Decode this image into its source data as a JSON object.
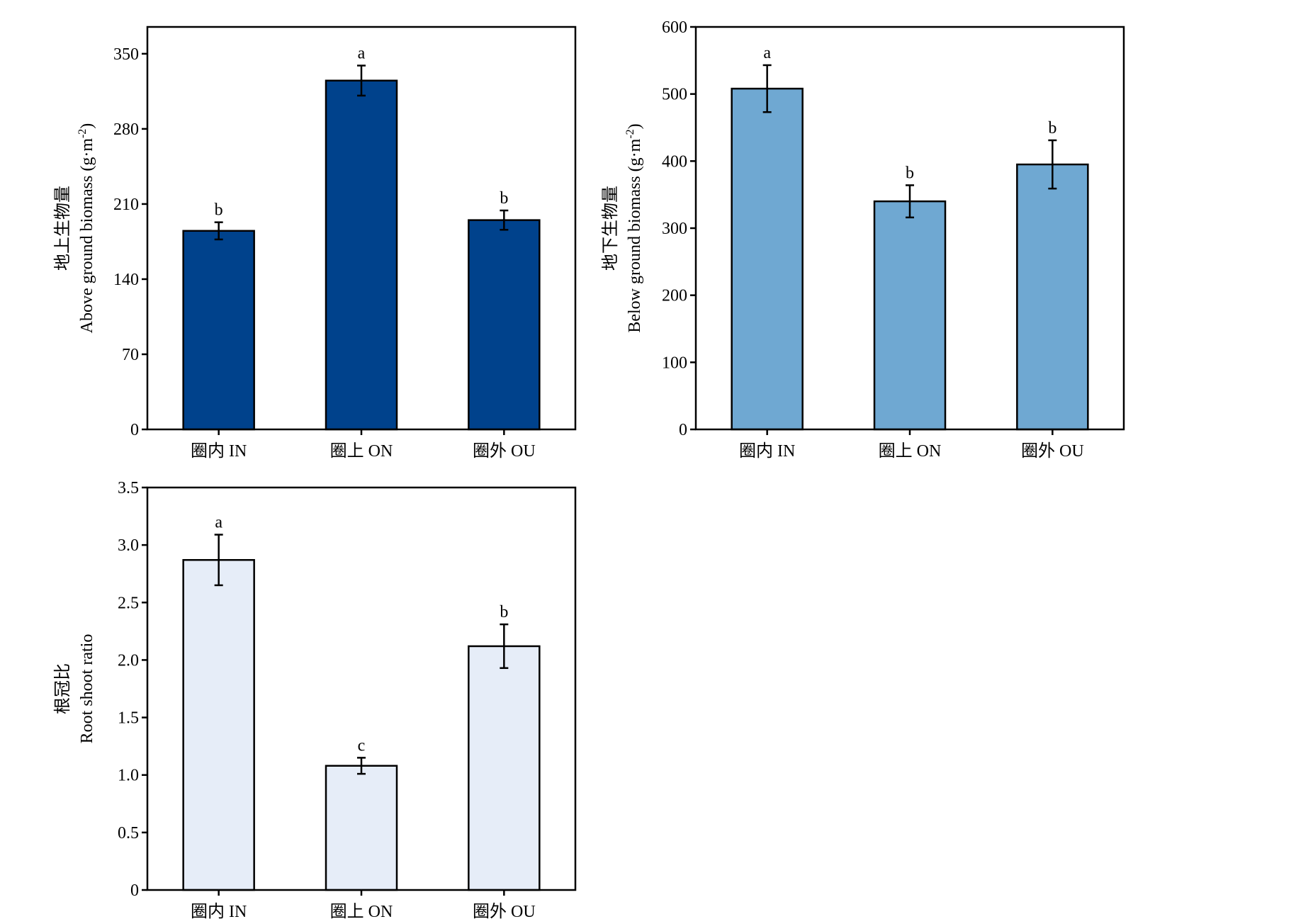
{
  "chart_data": [
    {
      "type": "bar",
      "categories": [
        "圈内 IN",
        "圈上 ON",
        "圈外 OU"
      ],
      "values": [
        185,
        325,
        195
      ],
      "errors": [
        8,
        14,
        9
      ],
      "significance": [
        "b",
        "a",
        "b"
      ],
      "ylabel_cn": "地上生物量",
      "ylabel_en": "Above ground biomass (g·m",
      "ylabel_unit_sup": "-2",
      "ylabel_unit_close": ")",
      "ylim": [
        0,
        375
      ],
      "yticks": [
        "0",
        "70",
        "140",
        "210",
        "280",
        "350"
      ],
      "ytick_values": [
        0,
        70,
        140,
        210,
        280,
        350
      ],
      "bar_color": "#00428c",
      "grid": false
    },
    {
      "type": "bar",
      "categories": [
        "圈内 IN",
        "圈上 ON",
        "圈外 OU"
      ],
      "values": [
        508,
        340,
        395
      ],
      "errors": [
        35,
        24,
        36
      ],
      "significance": [
        "a",
        "b",
        "b"
      ],
      "ylabel_cn": "地下生物量",
      "ylabel_en": "Below ground biomass (g·m",
      "ylabel_unit_sup": "-2",
      "ylabel_unit_close": ")",
      "ylim": [
        0,
        600
      ],
      "yticks": [
        "0",
        "100",
        "200",
        "300",
        "400",
        "500",
        "600"
      ],
      "ytick_values": [
        0,
        100,
        200,
        300,
        400,
        500,
        600
      ],
      "bar_color": "#6fa8d2",
      "grid": false
    },
    {
      "type": "bar",
      "categories": [
        "圈内 IN",
        "圈上 ON",
        "圈外 OU"
      ],
      "values": [
        2.87,
        1.08,
        2.12
      ],
      "errors": [
        0.22,
        0.07,
        0.19
      ],
      "significance": [
        "a",
        "c",
        "b"
      ],
      "ylabel_cn": "根冠比",
      "ylabel_en": "Root shoot ratio",
      "ylabel_unit_sup": "",
      "ylabel_unit_close": "",
      "ylim": [
        0,
        3.5
      ],
      "yticks": [
        "0",
        "0.5",
        "1.0",
        "1.5",
        "2.0",
        "2.5",
        "3.0",
        "3.5"
      ],
      "ytick_values": [
        0,
        0.5,
        1.0,
        1.5,
        2.0,
        2.5,
        3.0,
        3.5
      ],
      "bar_color": "#e6edf8",
      "grid": false
    }
  ]
}
